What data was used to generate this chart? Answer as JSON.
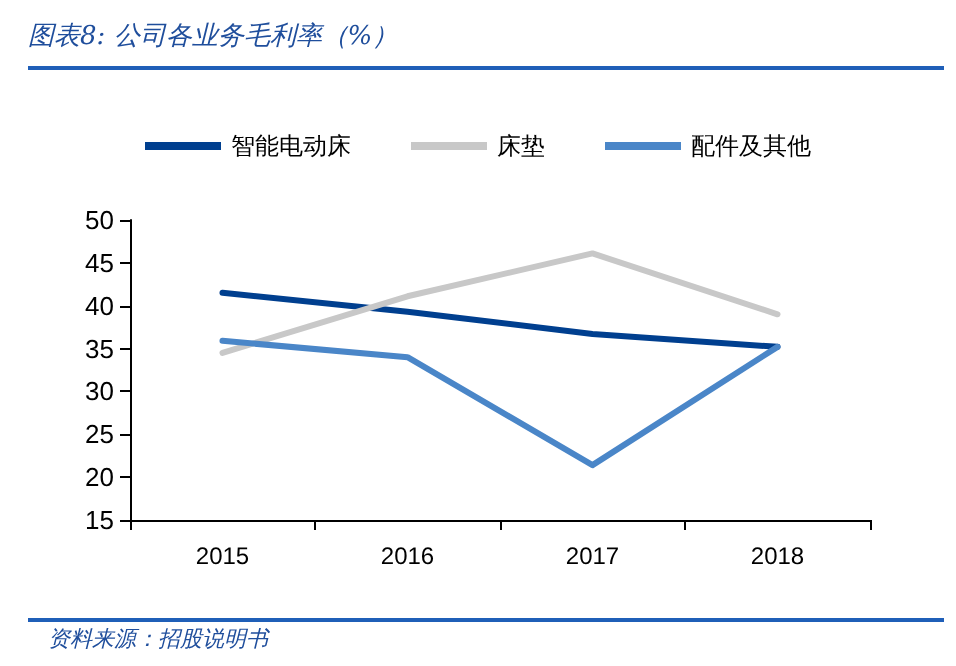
{
  "chart_data": {
    "type": "line",
    "title": "图表8: 公司各业务毛利率（%）",
    "categories": [
      "2015",
      "2016",
      "2017",
      "2018"
    ],
    "series": [
      {
        "name": "智能电动床",
        "color": "#003f8f",
        "values": [
          41.5,
          39.3,
          36.7,
          35.2
        ]
      },
      {
        "name": "床垫",
        "color": "#c8c8c8",
        "values": [
          34.5,
          41.1,
          46.1,
          39.0
        ]
      },
      {
        "name": "配件及其他",
        "color": "#4a86c8",
        "values": [
          35.9,
          34.0,
          21.4,
          35.2
        ]
      }
    ],
    "ylim": [
      15,
      50
    ],
    "yticks": [
      15,
      20,
      25,
      30,
      35,
      40,
      45,
      50
    ],
    "grid": false,
    "legend": "top",
    "marker": "none",
    "line_style": "solid",
    "annotations": [
      "资料来源：招股说明书"
    ]
  }
}
